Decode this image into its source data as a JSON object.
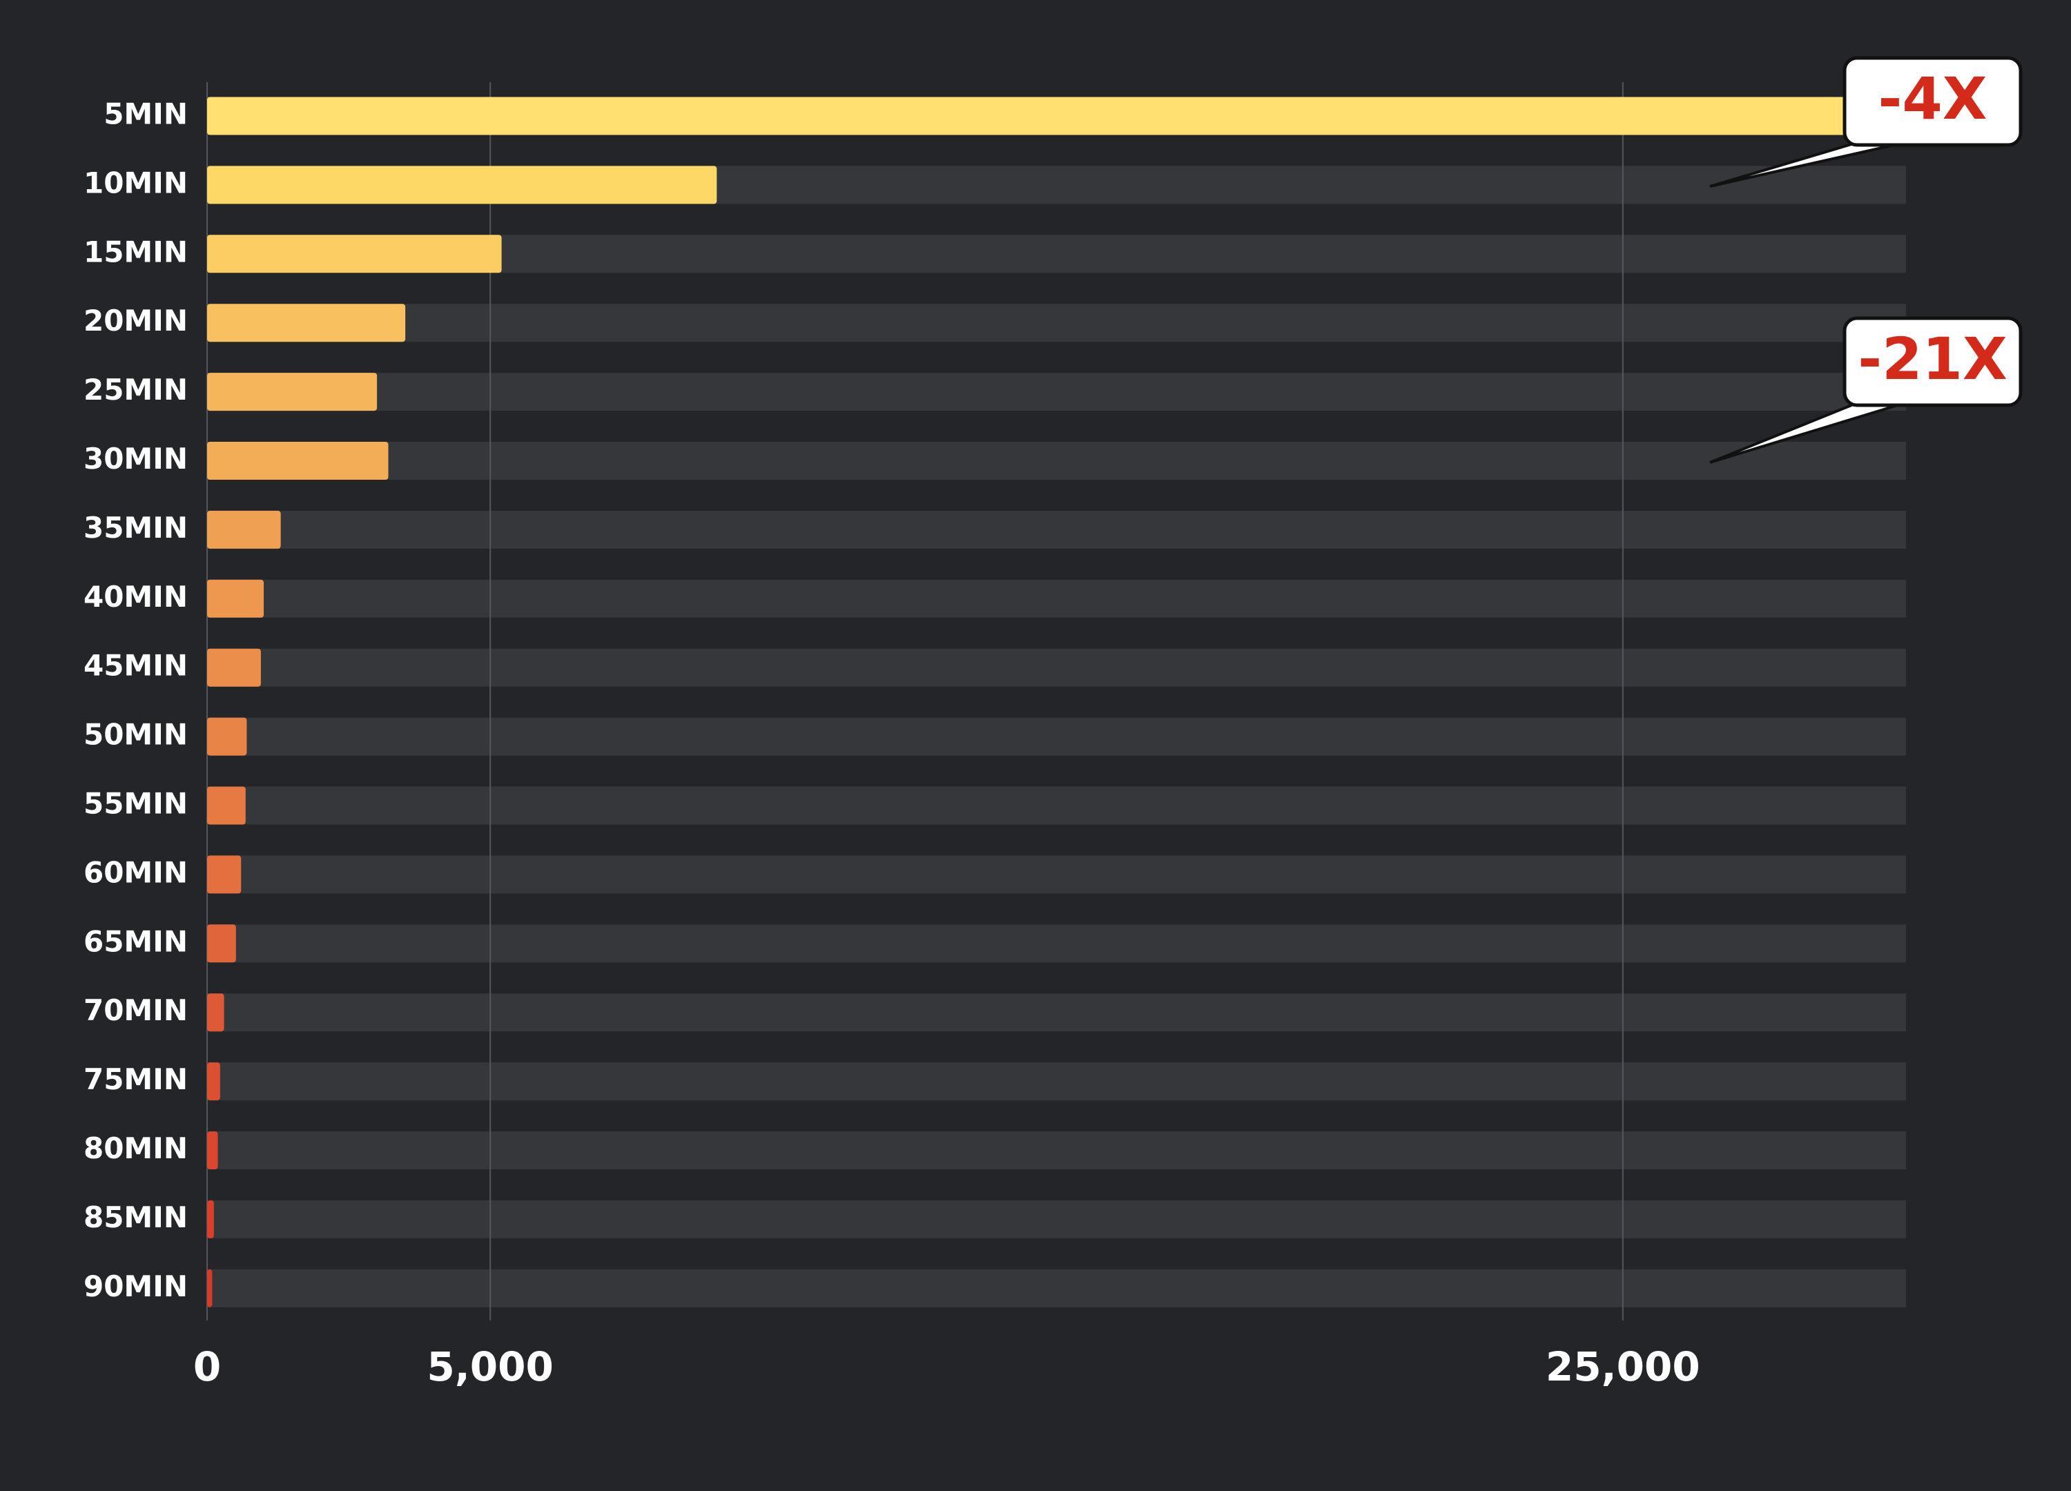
{
  "chart_data": {
    "type": "bar",
    "orientation": "horizontal",
    "categories": [
      "5MIN",
      "10MIN",
      "15MIN",
      "20MIN",
      "25MIN",
      "30MIN",
      "35MIN",
      "40MIN",
      "45MIN",
      "50MIN",
      "55MIN",
      "60MIN",
      "65MIN",
      "70MIN",
      "75MIN",
      "80MIN",
      "85MIN",
      "90MIN"
    ],
    "values": [
      30000,
      9000,
      5200,
      3500,
      3000,
      3200,
      1300,
      1000,
      950,
      700,
      680,
      600,
      510,
      300,
      230,
      190,
      120,
      90
    ],
    "colors": [
      "#ffe070",
      "#fdd866",
      "#fbcd62",
      "#f8c05e",
      "#f5b65b",
      "#f3ad57",
      "#f0a052",
      "#ee974e",
      "#eb8d4b",
      "#e98447",
      "#e77a43",
      "#e4703f",
      "#e1653b",
      "#de5a36",
      "#dc5032",
      "#da472e",
      "#d8402b",
      "#d63a28"
    ],
    "xlim": [
      0,
      30000
    ],
    "xticks": [
      0,
      {
        "value": 5000,
        "label": "5,000"
      },
      {
        "value": 25000,
        "label": "25,000"
      }
    ],
    "grid": true,
    "annotations": [
      "-4X",
      "-21X"
    ]
  }
}
